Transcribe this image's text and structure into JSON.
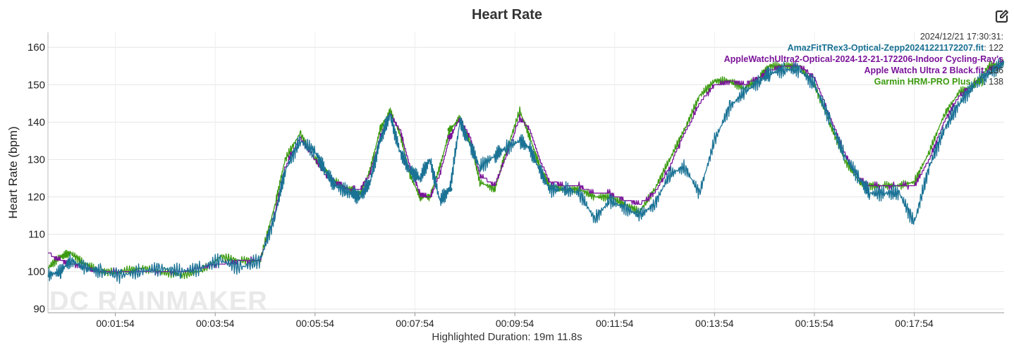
{
  "title": "Heart Rate",
  "footer": "Highlighted Duration: 19m 11.8s",
  "watermark": "DC RAINMAKER",
  "export_icon": "edit-export-icon",
  "tooltip": {
    "timestamp": "2024/12/21 17:30:31:",
    "entries": [
      {
        "name": "AmazFitTRex3-Optical-Zepp20241221172207.fit",
        "value": "122",
        "color": "#1a7295"
      },
      {
        "name": "AppleWatchUltra2-Optical-2024-12-21-172206-Indoor Cycling-Ray's",
        "value": "",
        "color": "#7a139a"
      },
      {
        "name": "Apple Watch Ultra 2 Black.fit",
        "value": "136",
        "color": "#7a139a"
      },
      {
        "name": "Garmin HRM-PRO Plus (4)",
        "value": "138",
        "color": "#3c9b10"
      }
    ]
  },
  "chart_data": {
    "type": "line",
    "title": "Heart Rate",
    "xlabel": "",
    "ylabel": "Heart Rate (bpm)",
    "ylim": [
      89,
      164
    ],
    "xlim_minutes": [
      0.55,
      19.7
    ],
    "y_ticks": [
      90,
      100,
      110,
      120,
      130,
      140,
      150,
      160
    ],
    "x_ticks": [
      "00:01:54",
      "00:03:54",
      "00:05:54",
      "00:07:54",
      "00:09:54",
      "00:11:54",
      "00:13:54",
      "00:15:54",
      "00:17:54"
    ],
    "x_tick_minutes": [
      1.9,
      3.9,
      5.9,
      7.9,
      9.9,
      11.9,
      13.9,
      15.9,
      17.9
    ],
    "grid": true,
    "legend": "tooltip top-right",
    "highlight": {
      "minute": 8.6,
      "values": {
        "AmazFit": 122,
        "AppleWatch": 136,
        "Garmin": 138
      }
    },
    "series": [
      {
        "name": "Garmin HRM-PRO Plus (4)",
        "color": "#3c9b10",
        "x": [
          0.55,
          0.8,
          1.0,
          1.3,
          1.6,
          2.0,
          2.4,
          2.8,
          3.2,
          3.6,
          4.0,
          4.4,
          4.8,
          5.1,
          5.3,
          5.6,
          5.9,
          6.1,
          6.3,
          6.6,
          6.8,
          7.0,
          7.2,
          7.4,
          7.6,
          7.8,
          8.0,
          8.2,
          8.4,
          8.6,
          8.8,
          9.0,
          9.2,
          9.5,
          9.7,
          10.0,
          10.2,
          10.4,
          10.6,
          10.9,
          11.2,
          11.5,
          11.8,
          12.1,
          12.4,
          12.7,
          13.0,
          13.3,
          13.6,
          13.9,
          14.2,
          14.5,
          14.8,
          15.0,
          15.3,
          15.6,
          15.9,
          16.2,
          16.5,
          16.8,
          17.0,
          17.3,
          17.6,
          17.9,
          18.2,
          18.5,
          18.8,
          19.1,
          19.4,
          19.7
        ],
        "y": [
          101,
          104,
          105,
          102,
          100,
          100,
          101,
          100,
          99,
          100,
          104,
          103,
          103,
          118,
          130,
          137,
          130,
          127,
          124,
          122,
          121,
          127,
          138,
          143,
          137,
          126,
          120,
          120,
          128,
          138,
          141,
          135,
          124,
          122,
          131,
          143,
          136,
          128,
          123,
          122,
          122,
          120,
          120,
          118,
          116,
          122,
          130,
          138,
          147,
          151,
          151,
          149,
          152,
          155,
          155,
          155,
          150,
          140,
          130,
          124,
          123,
          123,
          123,
          124,
          132,
          142,
          148,
          150,
          155,
          156
        ]
      },
      {
        "name": "Apple Watch Ultra 2 Black.fit",
        "color": "#7a139a",
        "x": [
          0.55,
          0.8,
          1.0,
          1.3,
          1.6,
          2.0,
          2.4,
          2.8,
          3.2,
          3.6,
          4.0,
          4.4,
          4.8,
          5.1,
          5.3,
          5.6,
          5.9,
          6.1,
          6.3,
          6.6,
          6.8,
          7.0,
          7.2,
          7.4,
          7.6,
          7.8,
          8.0,
          8.2,
          8.4,
          8.6,
          8.8,
          9.0,
          9.2,
          9.5,
          9.7,
          10.0,
          10.2,
          10.4,
          10.6,
          10.9,
          11.2,
          11.5,
          11.8,
          12.1,
          12.4,
          12.7,
          13.0,
          13.3,
          13.6,
          13.9,
          14.2,
          14.5,
          14.8,
          15.0,
          15.3,
          15.6,
          15.9,
          16.2,
          16.5,
          16.8,
          17.0,
          17.3,
          17.6,
          17.9,
          18.2,
          18.5,
          18.8,
          19.1,
          19.4,
          19.7
        ],
        "y": [
          105,
          103,
          102,
          101,
          100,
          100,
          100,
          100,
          100,
          101,
          102,
          103,
          103,
          116,
          128,
          136,
          130,
          126,
          124,
          122,
          122,
          126,
          136,
          142,
          138,
          128,
          121,
          120,
          126,
          136,
          141,
          136,
          126,
          123,
          130,
          141,
          138,
          130,
          124,
          123,
          123,
          121,
          121,
          119,
          118,
          121,
          128,
          137,
          145,
          150,
          151,
          150,
          152,
          154,
          155,
          155,
          152,
          142,
          132,
          125,
          123,
          123,
          123,
          123,
          130,
          140,
          147,
          150,
          154,
          156
        ]
      },
      {
        "name": "AmazFitTRex3-Optical-Zepp20241221172207.fit",
        "color": "#1a7295",
        "x": [
          0.55,
          0.8,
          1.0,
          1.3,
          1.6,
          2.0,
          2.4,
          2.8,
          3.2,
          3.6,
          4.0,
          4.4,
          4.8,
          5.1,
          5.3,
          5.6,
          5.9,
          6.1,
          6.3,
          6.6,
          6.8,
          7.0,
          7.2,
          7.4,
          7.6,
          7.8,
          8.0,
          8.2,
          8.4,
          8.6,
          8.8,
          9.0,
          9.2,
          9.5,
          9.7,
          10.0,
          10.2,
          10.4,
          10.6,
          10.9,
          11.2,
          11.5,
          11.8,
          12.1,
          12.4,
          12.7,
          13.0,
          13.3,
          13.6,
          13.9,
          14.2,
          14.5,
          14.8,
          15.0,
          15.3,
          15.6,
          15.9,
          16.2,
          16.5,
          16.8,
          17.0,
          17.3,
          17.6,
          17.9,
          18.2,
          18.5,
          18.8,
          19.1,
          19.4,
          19.7
        ],
        "y": [
          99,
          100,
          103,
          101,
          100,
          99,
          100,
          101,
          100,
          101,
          103,
          101,
          103,
          115,
          127,
          135,
          132,
          127,
          123,
          121,
          120,
          124,
          135,
          142,
          132,
          127,
          125,
          130,
          119,
          122,
          140,
          134,
          128,
          131,
          133,
          135,
          133,
          127,
          122,
          122,
          121,
          114,
          119,
          117,
          115,
          118,
          126,
          128,
          121,
          135,
          144,
          148,
          151,
          153,
          154,
          154,
          150,
          141,
          131,
          125,
          121,
          121,
          121,
          113,
          128,
          138,
          145,
          150,
          153,
          156
        ]
      }
    ]
  }
}
